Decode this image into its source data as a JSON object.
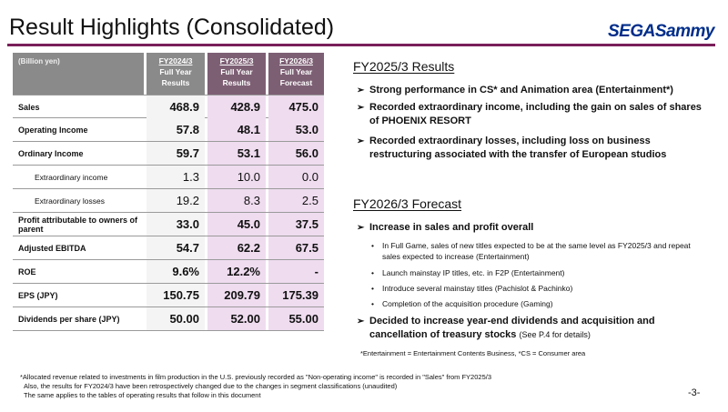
{
  "header": {
    "title": "Result Highlights (Consolidated)",
    "logo_sega": "SEGA",
    "logo_sammy": "Sammy",
    "accent_color": "#7a1f5a",
    "logo_color": "#002d8a"
  },
  "table": {
    "unit_label": "(Billion yen)",
    "columns": [
      {
        "fy": "FY2024/3",
        "l1": "Full Year",
        "l2": "Results"
      },
      {
        "fy": "FY2025/3",
        "l1": "Full Year",
        "l2": "Results"
      },
      {
        "fy": "FY2026/3",
        "l1": "Full Year",
        "l2": "Forecast"
      }
    ],
    "rows": [
      {
        "label": "Sales",
        "v1": "468.9",
        "v2": "428.9",
        "v3": "475.0"
      },
      {
        "label": "Operating Income",
        "v1": "57.8",
        "v2": "48.1",
        "v3": "53.0"
      },
      {
        "label": "Ordinary Income",
        "v1": "59.7",
        "v2": "53.1",
        "v3": "56.0"
      },
      {
        "label": "Extraordinary income",
        "v1": "1.3",
        "v2": "10.0",
        "v3": "0.0"
      },
      {
        "label": "Extraordinary losses",
        "v1": "19.2",
        "v2": "8.3",
        "v3": "2.5"
      },
      {
        "label": "Profit attributable to owners of parent",
        "v1": "33.0",
        "v2": "45.0",
        "v3": "37.5"
      },
      {
        "label": "Adjusted EBITDA",
        "v1": "54.7",
        "v2": "62.2",
        "v3": "67.5"
      },
      {
        "label": "ROE",
        "v1": "9.6%",
        "v2": "12.2%",
        "v3": "-"
      },
      {
        "label": "EPS (JPY)",
        "v1": "150.75",
        "v2": "209.79",
        "v3": "175.39"
      },
      {
        "label": "Dividends per share (JPY)",
        "v1": "50.00",
        "v2": "52.00",
        "v3": "55.00"
      }
    ]
  },
  "results": {
    "title": "FY2025/3 Results",
    "bullet_marker": "➢",
    "bullets": [
      "Strong performance in CS* and Animation area (Entertainment*)",
      "Recorded extraordinary income, including the gain on sales of shares of PHOENIX RESORT",
      "Recorded extraordinary losses, including loss on business restructuring associated with the transfer of European studios"
    ]
  },
  "forecast": {
    "title": "FY2026/3 Forecast",
    "bullet1": "Increase in sales and profit overall",
    "sub_marker": "•",
    "subs": [
      "In Full Game, sales of new titles expected to be at the same level as FY2025/3 and repeat sales expected to increase (Entertainment)",
      "Launch mainstay IP titles, etc. in F2P (Entertainment)",
      "Introduce several mainstay titles (Pachislot & Pachinko)",
      "Completion of the acquisition procedure (Gaming)"
    ],
    "bullet2_main": "Decided to increase year-end dividends and acquisition and cancellation of treasury stocks",
    "bullet2_ref": "(See P.4 for details)"
  },
  "notes": {
    "definitions": "*Entertainment = Entertainment Contents Business, *CS = Consumer area",
    "footnote1": "*Allocated revenue related to investments in film production in the U.S. previously recorded as \"Non-operating income\" is recorded in \"Sales\" from FY2025/3",
    "footnote2": "Also, the results for FY2024/3 have been retrospectively changed due to the changes in segment classifications (unaudited)",
    "footnote3": "The same applies to the tables of operating results that follow in this document",
    "page_number": "-3-"
  }
}
